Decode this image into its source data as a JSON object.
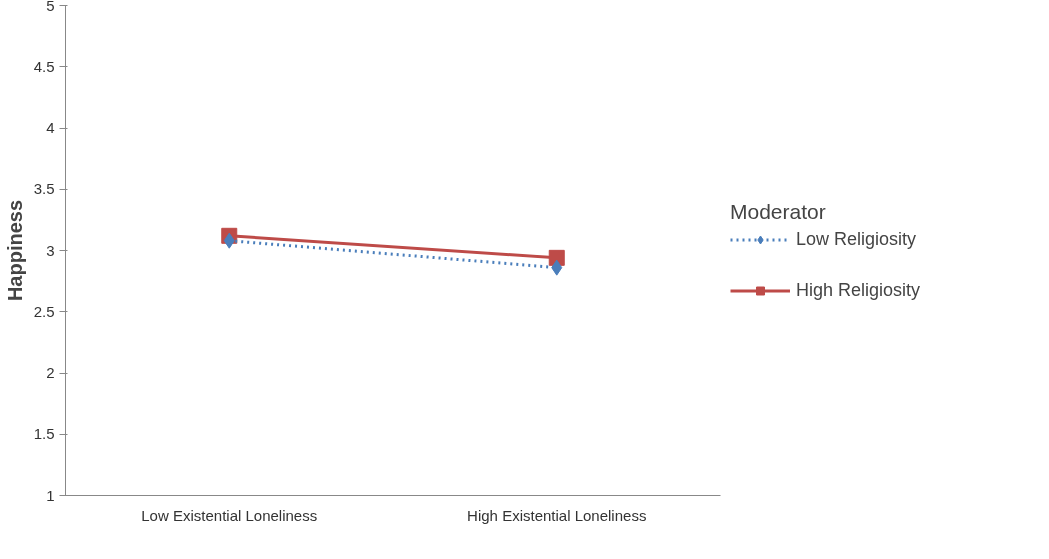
{
  "chart_data": {
    "type": "line",
    "ylabel": "Happiness",
    "legend_title": "Moderator",
    "categories": [
      "Low Existential Loneliness",
      "High Existential Loneliness"
    ],
    "series": [
      {
        "name": "Low Religiosity",
        "color": "#4a7ebb",
        "values": [
          3.08,
          2.86
        ],
        "marker": "diamond",
        "line_style": "dotted"
      },
      {
        "name": "High Religiosity",
        "color": "#be4b48",
        "values": [
          3.12,
          2.94
        ],
        "marker": "square",
        "line_style": "solid"
      }
    ],
    "ylim": [
      1,
      5
    ],
    "yticks": [
      1,
      1.5,
      2,
      2.5,
      3,
      3.5,
      4,
      4.5,
      5
    ],
    "grid": false,
    "legend": "right"
  }
}
